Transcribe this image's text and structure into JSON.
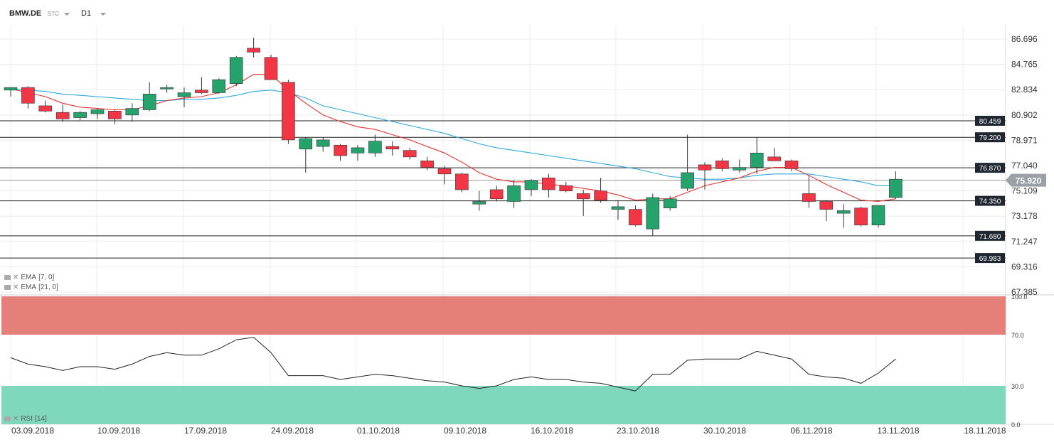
{
  "header": {
    "symbol": "BMW.DE",
    "type_tag": "STC",
    "timeframe": "D1"
  },
  "indicators": {
    "ema7_label": "EMA",
    "ema7_params": "[7, 0]",
    "ema21_label": "EMA",
    "ema21_params": "[21, 0]",
    "rsi_label": "RSI",
    "rsi_params": "[14]"
  },
  "colors": {
    "up": "#26a26c",
    "down": "#f23645",
    "ema7": "#e5322c",
    "ema21": "#2fa8e0",
    "rsi_overbought": "#e57f7a",
    "rsi_oversold": "#7fd8bd"
  },
  "chart_data": [
    {
      "type": "candlestick",
      "title": "",
      "y_ticks": [
        "86.696",
        "84.765",
        "82.834",
        "80.902",
        "78.971",
        "77.040",
        "75.109",
        "73.178",
        "71.247",
        "69.316",
        "67.385"
      ],
      "ylim": [
        67.385,
        86.696
      ],
      "x_ticks": [
        "03.09.2018",
        "10.09.2018",
        "17.09.2018",
        "24.09.2018",
        "01.10.2018",
        "09.10.2018",
        "16.10.2018",
        "23.10.2018",
        "30.10.2018",
        "06.11.2018",
        "13.11.2018",
        "18.11.2018"
      ],
      "current_price": "75.920",
      "levels": [
        "80.459",
        "79.200",
        "76.870",
        "74.350",
        "71.680",
        "69.983"
      ],
      "candles": [
        {
          "o": 82.8,
          "h": 83.0,
          "l": 82.3,
          "c": 83.0
        },
        {
          "o": 83.0,
          "h": 83.1,
          "l": 81.4,
          "c": 81.8
        },
        {
          "o": 81.6,
          "h": 82.0,
          "l": 81.1,
          "c": 81.2
        },
        {
          "o": 81.1,
          "h": 81.7,
          "l": 80.4,
          "c": 80.6
        },
        {
          "o": 80.7,
          "h": 81.2,
          "l": 80.5,
          "c": 81.1
        },
        {
          "o": 81.0,
          "h": 81.4,
          "l": 80.6,
          "c": 81.3
        },
        {
          "o": 81.2,
          "h": 81.3,
          "l": 80.2,
          "c": 80.6
        },
        {
          "o": 80.9,
          "h": 81.8,
          "l": 80.4,
          "c": 81.4
        },
        {
          "o": 81.3,
          "h": 83.4,
          "l": 81.2,
          "c": 82.5
        },
        {
          "o": 82.9,
          "h": 83.2,
          "l": 82.6,
          "c": 83.0
        },
        {
          "o": 82.3,
          "h": 83.0,
          "l": 81.5,
          "c": 82.6
        },
        {
          "o": 82.8,
          "h": 83.8,
          "l": 82.5,
          "c": 82.6
        },
        {
          "o": 82.6,
          "h": 83.7,
          "l": 82.5,
          "c": 83.6
        },
        {
          "o": 83.3,
          "h": 85.4,
          "l": 83.1,
          "c": 85.3
        },
        {
          "o": 86.0,
          "h": 86.8,
          "l": 85.3,
          "c": 85.7
        },
        {
          "o": 85.3,
          "h": 85.5,
          "l": 83.6,
          "c": 83.6
        },
        {
          "o": 83.4,
          "h": 83.6,
          "l": 78.7,
          "c": 79.0
        },
        {
          "o": 78.3,
          "h": 79.2,
          "l": 76.5,
          "c": 79.1
        },
        {
          "o": 78.5,
          "h": 79.2,
          "l": 78.1,
          "c": 79.0
        },
        {
          "o": 78.6,
          "h": 78.7,
          "l": 77.4,
          "c": 77.8
        },
        {
          "o": 78.0,
          "h": 78.6,
          "l": 77.4,
          "c": 78.4
        },
        {
          "o": 78.0,
          "h": 79.4,
          "l": 77.7,
          "c": 78.9
        },
        {
          "o": 78.5,
          "h": 78.9,
          "l": 77.8,
          "c": 78.3
        },
        {
          "o": 78.2,
          "h": 78.4,
          "l": 77.5,
          "c": 77.7
        },
        {
          "o": 77.4,
          "h": 77.7,
          "l": 76.7,
          "c": 76.9
        },
        {
          "o": 76.8,
          "h": 77.0,
          "l": 75.6,
          "c": 76.4
        },
        {
          "o": 76.4,
          "h": 76.5,
          "l": 75.0,
          "c": 75.2
        },
        {
          "o": 74.1,
          "h": 75.1,
          "l": 73.6,
          "c": 74.3
        },
        {
          "o": 75.2,
          "h": 75.5,
          "l": 74.3,
          "c": 74.5
        },
        {
          "o": 74.3,
          "h": 75.9,
          "l": 73.8,
          "c": 75.5
        },
        {
          "o": 75.2,
          "h": 76.0,
          "l": 74.7,
          "c": 75.9
        },
        {
          "o": 76.1,
          "h": 76.4,
          "l": 74.6,
          "c": 75.2
        },
        {
          "o": 75.5,
          "h": 75.8,
          "l": 75.0,
          "c": 75.1
        },
        {
          "o": 74.9,
          "h": 75.2,
          "l": 73.2,
          "c": 74.5
        },
        {
          "o": 75.1,
          "h": 76.1,
          "l": 74.2,
          "c": 74.4
        },
        {
          "o": 73.7,
          "h": 74.4,
          "l": 72.9,
          "c": 73.9
        },
        {
          "o": 73.7,
          "h": 74.0,
          "l": 72.4,
          "c": 72.5
        },
        {
          "o": 72.2,
          "h": 74.9,
          "l": 71.7,
          "c": 74.6
        },
        {
          "o": 73.8,
          "h": 74.7,
          "l": 73.6,
          "c": 74.5
        },
        {
          "o": 75.3,
          "h": 79.4,
          "l": 75.1,
          "c": 76.5
        },
        {
          "o": 77.1,
          "h": 77.3,
          "l": 75.2,
          "c": 76.7
        },
        {
          "o": 77.4,
          "h": 77.6,
          "l": 76.6,
          "c": 76.8
        },
        {
          "o": 76.7,
          "h": 77.5,
          "l": 76.5,
          "c": 76.9
        },
        {
          "o": 76.9,
          "h": 79.2,
          "l": 76.4,
          "c": 78.0
        },
        {
          "o": 77.7,
          "h": 78.4,
          "l": 77.4,
          "c": 77.4
        },
        {
          "o": 77.4,
          "h": 77.5,
          "l": 76.6,
          "c": 76.8
        },
        {
          "o": 74.9,
          "h": 76.3,
          "l": 73.8,
          "c": 74.3
        },
        {
          "o": 74.3,
          "h": 74.4,
          "l": 72.8,
          "c": 73.7
        },
        {
          "o": 73.4,
          "h": 74.1,
          "l": 72.3,
          "c": 73.6
        },
        {
          "o": 73.8,
          "h": 73.9,
          "l": 72.4,
          "c": 72.5
        },
        {
          "o": 72.5,
          "h": 74.0,
          "l": 72.3,
          "c": 74.0
        },
        {
          "o": 74.6,
          "h": 76.6,
          "l": 74.5,
          "c": 76.0
        }
      ],
      "ema7": [
        82.9,
        82.6,
        82.3,
        81.8,
        81.5,
        81.4,
        81.3,
        81.3,
        81.6,
        82.0,
        82.2,
        82.3,
        82.6,
        83.2,
        84.0,
        84.0,
        82.8,
        81.8,
        80.9,
        80.4,
        80.0,
        79.8,
        79.4,
        79.0,
        78.5,
        78.0,
        77.3,
        76.5,
        76.0,
        75.8,
        75.8,
        75.6,
        75.5,
        75.3,
        75.1,
        74.8,
        74.4,
        74.5,
        74.5,
        75.0,
        75.5,
        75.8,
        76.1,
        76.6,
        76.9,
        76.9,
        76.3,
        75.6,
        75.0,
        74.4,
        74.3,
        74.5
      ],
      "ema21": [
        82.9,
        82.8,
        82.7,
        82.5,
        82.4,
        82.3,
        82.2,
        82.1,
        82.0,
        82.0,
        82.1,
        82.1,
        82.2,
        82.4,
        82.7,
        82.8,
        82.6,
        82.2,
        81.6,
        81.3,
        81.0,
        80.7,
        80.4,
        80.1,
        79.8,
        79.5,
        79.1,
        78.7,
        78.4,
        78.2,
        78.0,
        77.8,
        77.6,
        77.4,
        77.2,
        77.0,
        76.8,
        76.5,
        76.2,
        76.1,
        76.0,
        76.0,
        76.1,
        76.3,
        76.4,
        76.4,
        76.4,
        76.2,
        76.0,
        75.8,
        75.5,
        75.5
      ]
    },
    {
      "type": "line",
      "title": "",
      "y_ticks": [
        "100.0",
        "70.0",
        "30.0",
        "0.0"
      ],
      "ylim": [
        0,
        100
      ],
      "overbought": 70,
      "oversold": 30,
      "values": [
        52,
        47,
        45,
        42,
        45,
        45,
        43,
        47,
        53,
        56,
        54,
        54,
        59,
        66,
        68,
        56,
        38,
        38,
        38,
        35,
        37,
        39,
        38,
        36,
        34,
        33,
        30,
        28,
        30,
        35,
        37,
        35,
        35,
        33,
        32,
        29,
        26,
        39,
        39,
        50,
        51,
        51,
        51,
        57,
        54,
        51,
        39,
        37,
        36,
        32,
        40,
        51
      ]
    }
  ]
}
